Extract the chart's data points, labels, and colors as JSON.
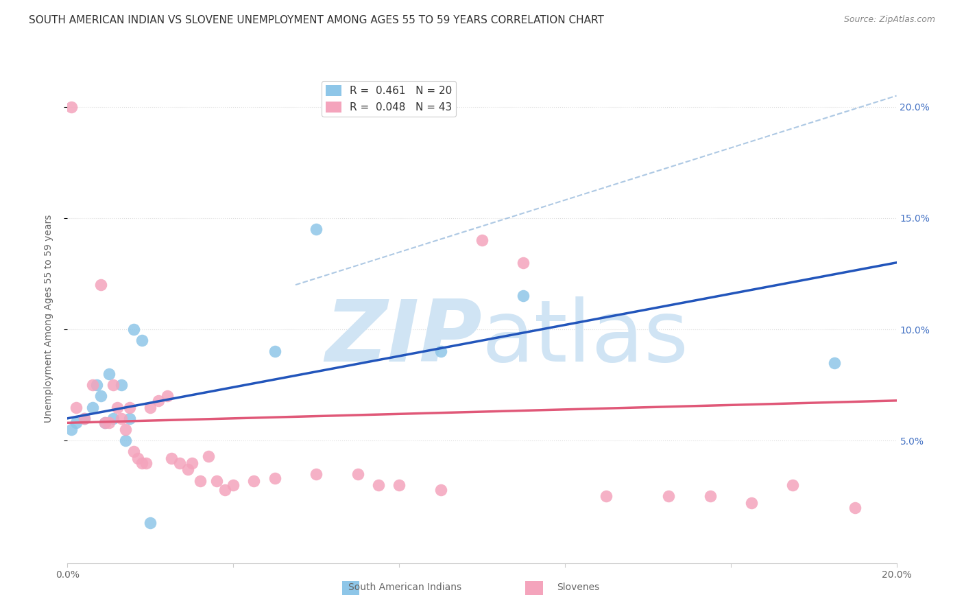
{
  "title": "SOUTH AMERICAN INDIAN VS SLOVENE UNEMPLOYMENT AMONG AGES 55 TO 59 YEARS CORRELATION CHART",
  "source": "Source: ZipAtlas.com",
  "ylabel": "Unemployment Among Ages 55 to 59 years",
  "xlim": [
    0,
    0.2
  ],
  "ylim": [
    -0.005,
    0.215
  ],
  "yticks": [
    0.05,
    0.1,
    0.15,
    0.2
  ],
  "ytick_labels": [
    "5.0%",
    "10.0%",
    "15.0%",
    "20.0%"
  ],
  "blue_R": "0.461",
  "blue_N": "20",
  "pink_R": "0.048",
  "pink_N": "43",
  "blue_color": "#8EC6E8",
  "pink_color": "#F4A4BC",
  "blue_line_color": "#2255BB",
  "pink_line_color": "#E05878",
  "dashed_line_color": "#99BBDD",
  "watermark_color": "#D0E4F4",
  "right_yaxis_color": "#4472C4",
  "title_fontsize": 11,
  "axis_label_fontsize": 10,
  "tick_fontsize": 10,
  "legend_fontsize": 11,
  "background_color": "#FFFFFF",
  "grid_color": "#DDDDDD",
  "blue_points_x": [
    0.001,
    0.002,
    0.004,
    0.006,
    0.007,
    0.008,
    0.009,
    0.01,
    0.011,
    0.013,
    0.014,
    0.015,
    0.016,
    0.018,
    0.02,
    0.05,
    0.06,
    0.09,
    0.11,
    0.185
  ],
  "blue_points_y": [
    0.055,
    0.058,
    0.06,
    0.065,
    0.075,
    0.07,
    0.058,
    0.08,
    0.06,
    0.075,
    0.05,
    0.06,
    0.1,
    0.095,
    0.013,
    0.09,
    0.145,
    0.09,
    0.115,
    0.085
  ],
  "pink_points_x": [
    0.001,
    0.002,
    0.004,
    0.006,
    0.008,
    0.009,
    0.01,
    0.011,
    0.012,
    0.013,
    0.014,
    0.015,
    0.016,
    0.017,
    0.018,
    0.019,
    0.02,
    0.022,
    0.024,
    0.025,
    0.027,
    0.029,
    0.03,
    0.032,
    0.034,
    0.036,
    0.038,
    0.04,
    0.045,
    0.05,
    0.06,
    0.07,
    0.075,
    0.08,
    0.09,
    0.1,
    0.11,
    0.13,
    0.145,
    0.155,
    0.165,
    0.175,
    0.19
  ],
  "pink_points_y": [
    0.2,
    0.065,
    0.06,
    0.075,
    0.12,
    0.058,
    0.058,
    0.075,
    0.065,
    0.06,
    0.055,
    0.065,
    0.045,
    0.042,
    0.04,
    0.04,
    0.065,
    0.068,
    0.07,
    0.042,
    0.04,
    0.037,
    0.04,
    0.032,
    0.043,
    0.032,
    0.028,
    0.03,
    0.032,
    0.033,
    0.035,
    0.035,
    0.03,
    0.03,
    0.028,
    0.14,
    0.13,
    0.025,
    0.025,
    0.025,
    0.022,
    0.03,
    0.02
  ],
  "blue_line_x": [
    0.0,
    0.2
  ],
  "blue_line_y": [
    0.06,
    0.13
  ],
  "pink_line_x": [
    0.0,
    0.2
  ],
  "pink_line_y": [
    0.058,
    0.068
  ],
  "dashed_line_x": [
    0.055,
    0.2
  ],
  "dashed_line_y": [
    0.12,
    0.205
  ]
}
